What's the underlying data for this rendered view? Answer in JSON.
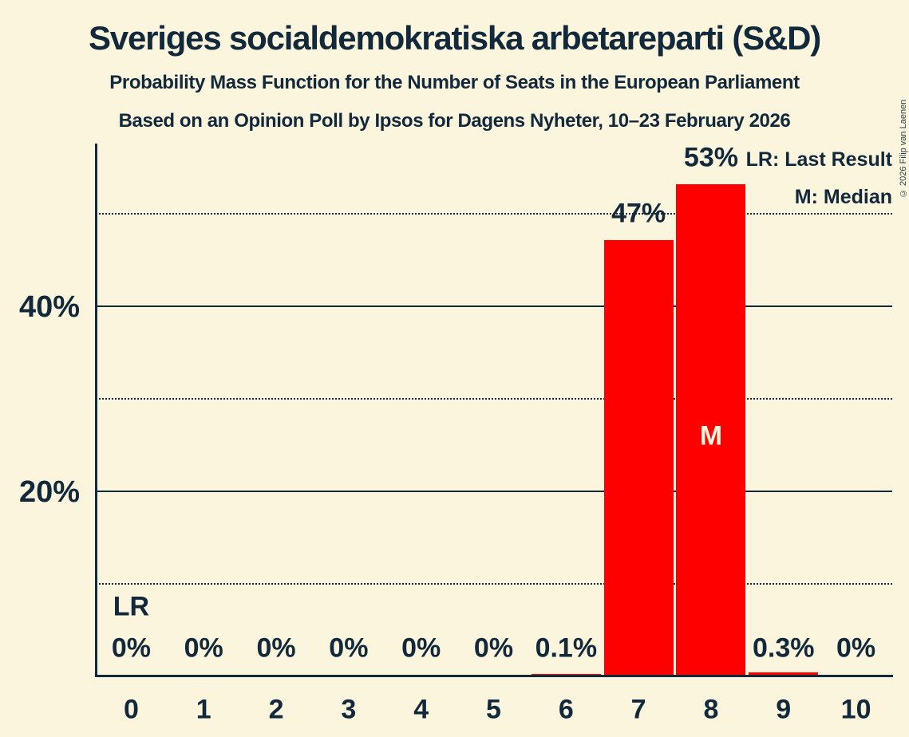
{
  "header": {
    "title": "Sveriges socialdemokratiska arbetareparti (S&D)",
    "subtitle1": "Probability Mass Function for the Number of Seats in the European Parliament",
    "subtitle2": "Based on an Opinion Poll by Ipsos for Dagens Nyheter, 10–23 February 2026",
    "copyright": "© 2026 Filip van Laenen"
  },
  "legend": {
    "lr_label": "LR: Last Result",
    "m_label": "M: Median"
  },
  "colors": {
    "background": "#faf5dc",
    "bar": "#ff0000",
    "text": "#12293c"
  },
  "chart_data": {
    "type": "bar",
    "title": "Sveriges socialdemokratiska arbetareparti (S&D)",
    "xlabel": "Number of seats",
    "ylabel": "Probability",
    "categories": [
      "0",
      "1",
      "2",
      "3",
      "4",
      "5",
      "6",
      "7",
      "8",
      "9",
      "10"
    ],
    "values": [
      0,
      0,
      0,
      0,
      0,
      0,
      0.1,
      47,
      53,
      0.3,
      0
    ],
    "bar_labels": [
      "0%",
      "0%",
      "0%",
      "0%",
      "0%",
      "0%",
      "0.1%",
      "47%",
      "53%",
      "0.3%",
      "0%"
    ],
    "ylim": [
      0,
      57.7
    ],
    "grid": "horizontal",
    "legend_position": "top-right",
    "yticks": [
      {
        "pct": 20,
        "label": "20%"
      },
      {
        "pct": 40,
        "label": "40%"
      }
    ],
    "gridlines": [
      {
        "pct": 10,
        "style": "dotted"
      },
      {
        "pct": 20,
        "style": "solid"
      },
      {
        "pct": 30,
        "style": "dotted"
      },
      {
        "pct": 40,
        "style": "solid"
      },
      {
        "pct": 50,
        "style": "dotted"
      }
    ],
    "annotations": {
      "last_result_seat": 0,
      "last_result_label": "LR",
      "median_seat": 8,
      "median_label": "M"
    }
  }
}
